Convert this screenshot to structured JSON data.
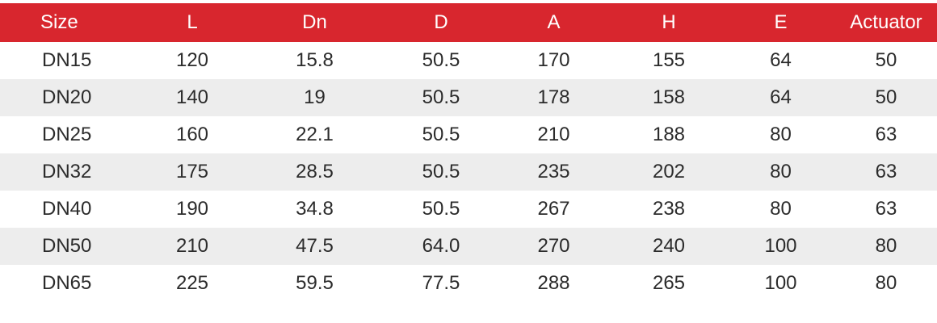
{
  "table": {
    "headers": [
      "Size",
      "L",
      "Dn",
      "D",
      "A",
      "H",
      "E",
      "Actuator"
    ],
    "rows": [
      [
        "DN15",
        "120",
        "15.8",
        "50.5",
        "170",
        "155",
        "64",
        "50"
      ],
      [
        "DN20",
        "140",
        "19",
        "50.5",
        "178",
        "158",
        "64",
        "50"
      ],
      [
        "DN25",
        "160",
        "22.1",
        "50.5",
        "210",
        "188",
        "80",
        "63"
      ],
      [
        "DN32",
        "175",
        "28.5",
        "50.5",
        "235",
        "202",
        "80",
        "63"
      ],
      [
        "DN40",
        "190",
        "34.8",
        "50.5",
        "267",
        "238",
        "80",
        "63"
      ],
      [
        "DN50",
        "210",
        "47.5",
        "64.0",
        "270",
        "240",
        "100",
        "80"
      ],
      [
        "DN65",
        "225",
        "59.5",
        "77.5",
        "288",
        "265",
        "100",
        "80"
      ]
    ]
  },
  "colors": {
    "header_bg": "#d8262e",
    "header_text": "#ffffff",
    "alt_row_bg": "#ededed",
    "body_text": "#2b2b2b"
  }
}
